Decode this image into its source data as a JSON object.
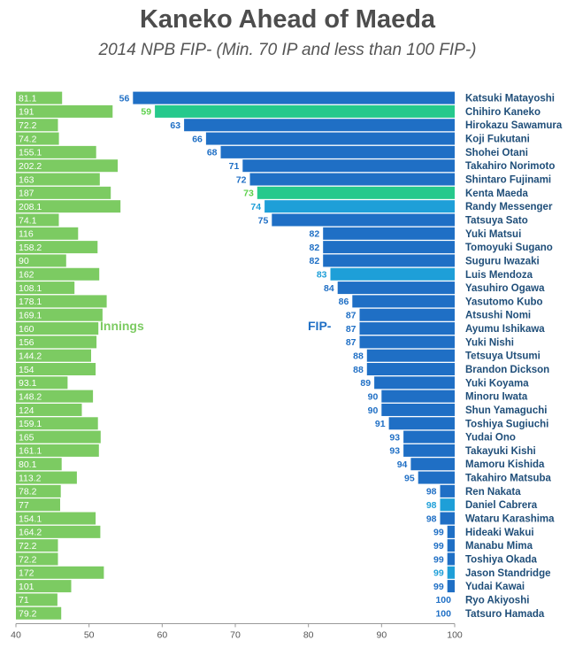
{
  "chart_data": {
    "type": "bar",
    "title": "Kaneko Ahead of Maeda",
    "subtitle": "2014 NPB FIP- (Min. 70 IP and less than 100 FIP-)",
    "xlim": [
      40,
      100
    ],
    "xticks": [
      "40",
      "50",
      "60",
      "70",
      "80",
      "90",
      "100"
    ],
    "legend": {
      "innings": "Innings",
      "fip": "FIP-"
    },
    "colors": {
      "fip_default": "#1f6fc5",
      "fip_accent": "#1e9fd8",
      "fip_highlight": "#26c98c",
      "innings": "#7ccb62",
      "name_text": "#1f4e79",
      "fip_label_default": "#1f6fc5",
      "fip_label_accent": "#1e9fd8",
      "fip_label_highlight": "#5bd04a"
    },
    "rows": [
      {
        "name": "Katsuki Matayoshi",
        "innings": "81.1",
        "fip": 56,
        "style": "default"
      },
      {
        "name": "Chihiro Kaneko",
        "innings": "191",
        "fip": 59,
        "style": "highlight"
      },
      {
        "name": "Hirokazu Sawamura",
        "innings": "72.2",
        "fip": 63,
        "style": "default"
      },
      {
        "name": "Koji Fukutani",
        "innings": "74.2",
        "fip": 66,
        "style": "default"
      },
      {
        "name": "Shohei Otani",
        "innings": "155.1",
        "fip": 68,
        "style": "default"
      },
      {
        "name": "Takahiro Norimoto",
        "innings": "202.2",
        "fip": 71,
        "style": "default"
      },
      {
        "name": "Shintaro Fujinami",
        "innings": "163",
        "fip": 72,
        "style": "default"
      },
      {
        "name": "Kenta Maeda",
        "innings": "187",
        "fip": 73,
        "style": "highlight"
      },
      {
        "name": "Randy Messenger",
        "innings": "208.1",
        "fip": 74,
        "style": "accent"
      },
      {
        "name": "Tatsuya Sato",
        "innings": "74.1",
        "fip": 75,
        "style": "default"
      },
      {
        "name": "Yuki Matsui",
        "innings": "116",
        "fip": 82,
        "style": "default"
      },
      {
        "name": "Tomoyuki Sugano",
        "innings": "158.2",
        "fip": 82,
        "style": "default"
      },
      {
        "name": "Suguru Iwazaki",
        "innings": "90",
        "fip": 82,
        "style": "default"
      },
      {
        "name": "Luis Mendoza",
        "innings": "162",
        "fip": 83,
        "style": "accent"
      },
      {
        "name": "Yasuhiro Ogawa",
        "innings": "108.1",
        "fip": 84,
        "style": "default"
      },
      {
        "name": "Yasutomo Kubo",
        "innings": "178.1",
        "fip": 86,
        "style": "default"
      },
      {
        "name": "Atsushi Nomi",
        "innings": "169.1",
        "fip": 87,
        "style": "default"
      },
      {
        "name": "Ayumu Ishikawa",
        "innings": "160",
        "fip": 87,
        "style": "default"
      },
      {
        "name": "Yuki Nishi",
        "innings": "156",
        "fip": 87,
        "style": "default"
      },
      {
        "name": "Tetsuya Utsumi",
        "innings": "144.2",
        "fip": 88,
        "style": "default"
      },
      {
        "name": "Brandon Dickson",
        "innings": "154",
        "fip": 88,
        "style": "default"
      },
      {
        "name": "Yuki Koyama",
        "innings": "93.1",
        "fip": 89,
        "style": "default"
      },
      {
        "name": "Minoru Iwata",
        "innings": "148.2",
        "fip": 90,
        "style": "default"
      },
      {
        "name": "Shun Yamaguchi",
        "innings": "124",
        "fip": 90,
        "style": "default"
      },
      {
        "name": "Toshiya Sugiuchi",
        "innings": "159.1",
        "fip": 91,
        "style": "default"
      },
      {
        "name": "Yudai Ono",
        "innings": "165",
        "fip": 93,
        "style": "default"
      },
      {
        "name": "Takayuki Kishi",
        "innings": "161.1",
        "fip": 93,
        "style": "default"
      },
      {
        "name": "Mamoru Kishida",
        "innings": "80.1",
        "fip": 94,
        "style": "default"
      },
      {
        "name": "Takahiro Matsuba",
        "innings": "113.2",
        "fip": 95,
        "style": "default"
      },
      {
        "name": "Ren Nakata",
        "innings": "78.2",
        "fip": 98,
        "style": "default"
      },
      {
        "name": "Daniel Cabrera",
        "innings": "77",
        "fip": 98,
        "style": "accent"
      },
      {
        "name": "Wataru Karashima",
        "innings": "154.1",
        "fip": 98,
        "style": "default"
      },
      {
        "name": "Hideaki Wakui",
        "innings": "164.2",
        "fip": 99,
        "style": "default"
      },
      {
        "name": "Manabu Mima",
        "innings": "72.2",
        "fip": 99,
        "style": "default"
      },
      {
        "name": "Toshiya Okada",
        "innings": "72.2",
        "fip": 99,
        "style": "default"
      },
      {
        "name": "Jason Standridge",
        "innings": "172",
        "fip": 99,
        "style": "accent"
      },
      {
        "name": "Yudai Kawai",
        "innings": "101",
        "fip": 99,
        "style": "default"
      },
      {
        "name": "Ryo Akiyoshi",
        "innings": "71",
        "fip": 100,
        "style": "default"
      },
      {
        "name": "Tatsuro Hamada",
        "innings": "79.2",
        "fip": 100,
        "style": "default"
      }
    ]
  }
}
